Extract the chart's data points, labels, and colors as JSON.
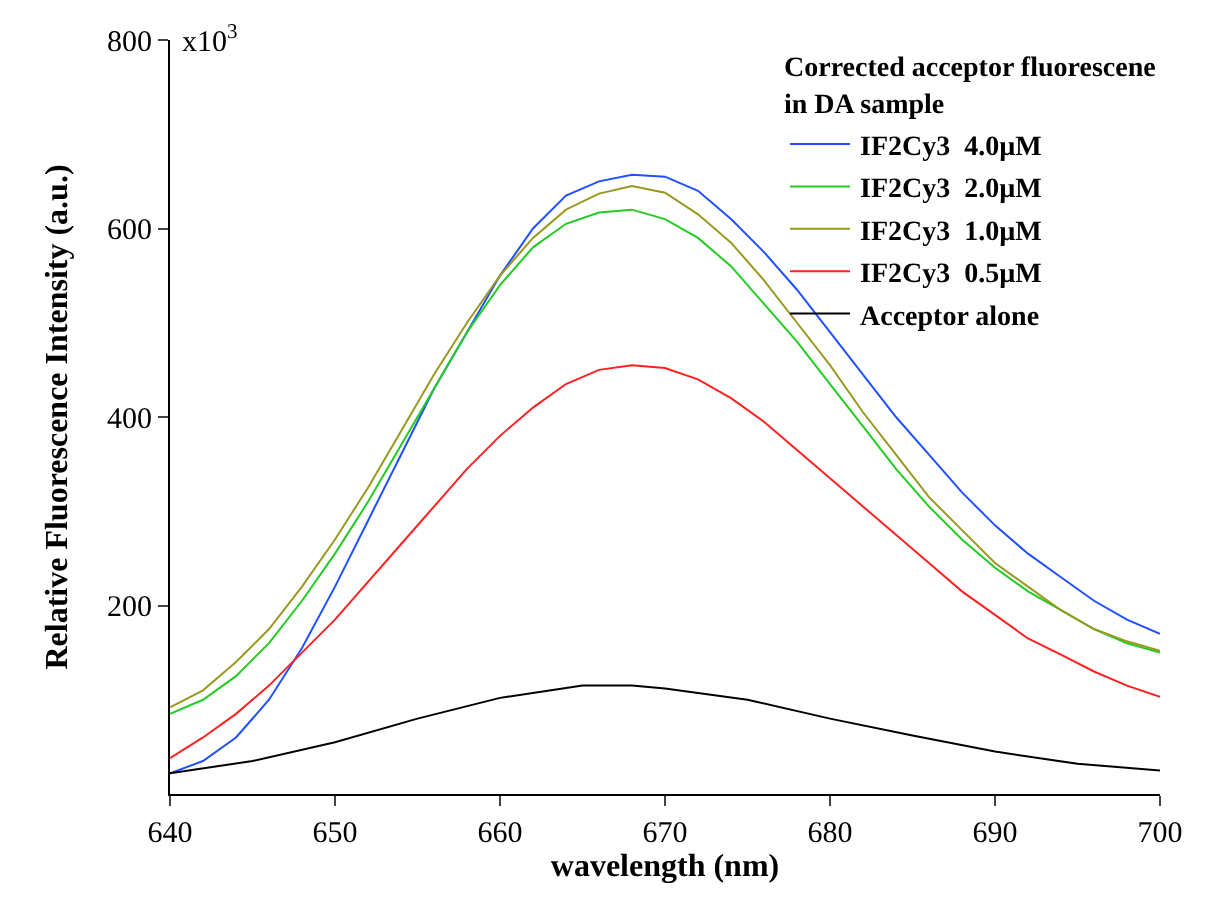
{
  "chart_data": {
    "type": "line",
    "xlabel": "wavelength (nm)",
    "ylabel": "Relative Fluorescence Intensity (a.u.)",
    "legend_title": "Corrected acceptor fluorescene\nin DA sample",
    "legend": "top right",
    "grid": false,
    "marker": "none",
    "line_style": "solid",
    "annotations": [
      "x10$^{3}$"
    ],
    "xlim": [
      640,
      700
    ],
    "xticks": [
      640,
      650,
      660,
      670,
      680,
      690,
      700
    ],
    "ylim": [
      0,
      800
    ],
    "yticks": [
      200,
      400,
      600,
      800
    ],
    "x": [
      640,
      642,
      644,
      646,
      648,
      650,
      652,
      654,
      656,
      658,
      660,
      662,
      664,
      666,
      668,
      670,
      672,
      674,
      676,
      678,
      680,
      682,
      684,
      686,
      688,
      690,
      692,
      694,
      696,
      698,
      700
    ],
    "series": [
      {
        "name": "IF2Cy3  4.0µM",
        "color": "#2050ff",
        "values": [
          22,
          35,
          60,
          100,
          155,
          220,
          290,
          360,
          430,
          490,
          550,
          600,
          635,
          650,
          657,
          655,
          640,
          610,
          575,
          535,
          490,
          445,
          400,
          360,
          320,
          285,
          255,
          230,
          205,
          185,
          170
        ]
      },
      {
        "name": "IF2Cy3  2.0µM",
        "color": "#22cc22",
        "values": [
          85,
          100,
          125,
          160,
          205,
          255,
          310,
          370,
          430,
          490,
          540,
          580,
          605,
          617,
          620,
          610,
          590,
          560,
          520,
          480,
          435,
          390,
          345,
          305,
          270,
          240,
          215,
          195,
          175,
          160,
          150
        ]
      },
      {
        "name": "IF2Cy3  1.0µM",
        "color": "#999922",
        "values": [
          92,
          110,
          140,
          175,
          220,
          270,
          325,
          385,
          445,
          500,
          550,
          590,
          620,
          637,
          645,
          638,
          615,
          585,
          545,
          500,
          455,
          405,
          360,
          315,
          280,
          245,
          220,
          195,
          175,
          162,
          152
        ]
      },
      {
        "name": "IF2Cy3  0.5µM",
        "color": "#ff2020",
        "values": [
          38,
          60,
          85,
          115,
          150,
          185,
          225,
          265,
          305,
          345,
          380,
          410,
          435,
          450,
          455,
          452,
          440,
          420,
          395,
          365,
          335,
          305,
          275,
          245,
          215,
          190,
          165,
          148,
          130,
          115,
          103
        ]
      },
      {
        "name": "Acceptor alone",
        "color": "#000000",
        "x": [
          640,
          645,
          650,
          655,
          660,
          665,
          668,
          670,
          675,
          680,
          685,
          690,
          695,
          700
        ],
        "values": [
          22,
          35,
          55,
          80,
          102,
          115,
          115,
          112,
          100,
          80,
          62,
          45,
          32,
          25
        ]
      }
    ]
  }
}
